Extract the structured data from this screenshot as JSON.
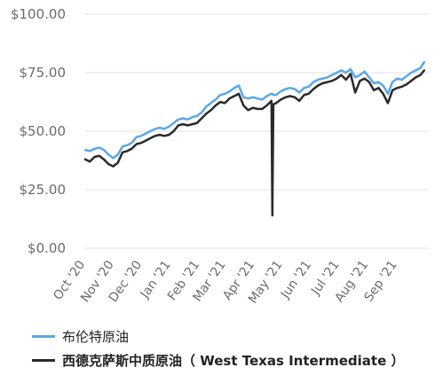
{
  "chart_data": {
    "type": "line",
    "x_dates": [
      "2020-10-01",
      "2020-10-06",
      "2020-10-11",
      "2020-10-16",
      "2020-10-21",
      "2020-10-26",
      "2020-10-31",
      "2020-11-05",
      "2020-11-10",
      "2020-11-15",
      "2020-11-20",
      "2020-11-25",
      "2020-11-30",
      "2020-12-05",
      "2020-12-10",
      "2020-12-15",
      "2020-12-20",
      "2020-12-25",
      "2020-12-30",
      "2021-01-04",
      "2021-01-09",
      "2021-01-14",
      "2021-01-19",
      "2021-01-24",
      "2021-01-29",
      "2021-02-03",
      "2021-02-08",
      "2021-02-13",
      "2021-02-18",
      "2021-02-23",
      "2021-02-28",
      "2021-03-05",
      "2021-03-10",
      "2021-03-15",
      "2021-03-20",
      "2021-03-25",
      "2021-03-30",
      "2021-04-04",
      "2021-04-09",
      "2021-04-14",
      "2021-04-19",
      "2021-04-20",
      "2021-04-21",
      "2021-04-24",
      "2021-04-29",
      "2021-05-04",
      "2021-05-09",
      "2021-05-14",
      "2021-05-19",
      "2021-05-24",
      "2021-05-29",
      "2021-06-03",
      "2021-06-08",
      "2021-06-13",
      "2021-06-18",
      "2021-06-23",
      "2021-06-28",
      "2021-07-03",
      "2021-07-08",
      "2021-07-13",
      "2021-07-18",
      "2021-07-23",
      "2021-07-28",
      "2021-08-02",
      "2021-08-07",
      "2021-08-12",
      "2021-08-17",
      "2021-08-22",
      "2021-08-27",
      "2021-09-01",
      "2021-09-06",
      "2021-09-11",
      "2021-09-16",
      "2021-09-21",
      "2021-09-26",
      "2021-09-30"
    ],
    "series": [
      {
        "name": "布伦特原油",
        "color": "#5aa8e6",
        "values": [
          42.0,
          41.5,
          42.5,
          43.0,
          42.0,
          40.0,
          38.5,
          40.0,
          43.5,
          44.0,
          45.0,
          47.5,
          48.0,
          49.0,
          50.0,
          51.0,
          51.5,
          51.0,
          52.0,
          53.5,
          55.0,
          55.5,
          55.0,
          56.0,
          56.5,
          58.0,
          60.5,
          62.0,
          63.5,
          65.5,
          66.0,
          67.0,
          68.5,
          69.5,
          64.5,
          64.0,
          64.5,
          64.0,
          63.5,
          65.0,
          66.0,
          66.0,
          65.5,
          65.5,
          67.0,
          68.0,
          68.5,
          68.0,
          66.5,
          68.5,
          69.0,
          71.0,
          72.0,
          72.5,
          73.0,
          74.0,
          75.0,
          76.0,
          75.0,
          76.5,
          73.0,
          74.0,
          75.5,
          73.0,
          70.5,
          71.0,
          69.5,
          66.0,
          71.0,
          72.5,
          72.0,
          73.5,
          75.0,
          76.0,
          77.0,
          79.5
        ]
      },
      {
        "name": "西德克萨斯中质原油（ West Texas Intermediate ）",
        "color": "#2a2a2a",
        "values": [
          38.0,
          37.0,
          39.0,
          39.5,
          38.0,
          36.0,
          35.0,
          36.5,
          41.0,
          41.5,
          42.5,
          44.5,
          45.0,
          46.0,
          47.0,
          48.0,
          48.5,
          48.0,
          48.5,
          50.0,
          52.5,
          53.0,
          52.5,
          53.0,
          53.5,
          55.5,
          57.5,
          59.0,
          61.0,
          62.5,
          62.0,
          64.0,
          65.0,
          66.0,
          61.0,
          59.0,
          60.0,
          59.5,
          59.5,
          61.0,
          63.0,
          14.0,
          61.5,
          62.0,
          63.5,
          64.5,
          65.0,
          64.5,
          63.0,
          65.5,
          66.0,
          68.0,
          69.5,
          70.5,
          71.0,
          71.5,
          72.5,
          74.0,
          72.0,
          74.5,
          66.5,
          71.5,
          72.5,
          71.0,
          67.5,
          68.5,
          66.0,
          62.0,
          67.5,
          68.5,
          69.0,
          70.0,
          71.5,
          73.0,
          74.0,
          76.0
        ]
      }
    ],
    "y_ticks": [
      0,
      25,
      50,
      75,
      100
    ],
    "y_tick_labels": [
      "$0.00",
      "$25.00",
      "$50.00",
      "$75.00",
      "$100.00"
    ],
    "ylim": [
      0,
      100
    ],
    "x_tick_labels": [
      "Oct '20",
      "Nov '20",
      "Dec '20",
      "Jan '21",
      "Feb '21",
      "Mar '21",
      "Apr '21",
      "May '21",
      "Jun '21",
      "Jul '21",
      "Aug '21",
      "Sep '21"
    ],
    "x_tick_dates": [
      "2020-10-01",
      "2020-11-01",
      "2020-12-01",
      "2021-01-01",
      "2021-02-01",
      "2021-03-01",
      "2021-04-01",
      "2021-05-01",
      "2021-06-01",
      "2021-07-01",
      "2021-08-01",
      "2021-09-01"
    ],
    "xlim": [
      "2020-10-01",
      "2021-10-05"
    ],
    "grid": "horizontal",
    "legend_position": "bottom-left"
  }
}
